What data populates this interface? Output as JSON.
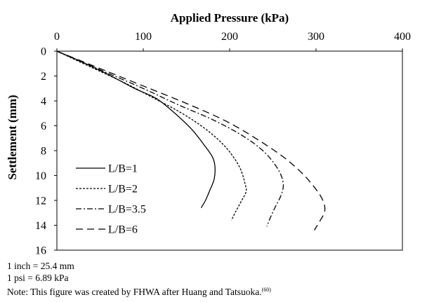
{
  "chart_data": {
    "type": "line",
    "title": "Applied Pressure (kPa)",
    "xlabel": "Applied Pressure (kPa)",
    "ylabel": "Settlement (mm)",
    "xlim": [
      0,
      400
    ],
    "ylim": [
      0,
      16
    ],
    "x_ticks": [
      "0",
      "100",
      "200",
      "300",
      "400"
    ],
    "y_ticks": [
      "0",
      "2",
      "4",
      "6",
      "8",
      "10",
      "12",
      "14",
      "16"
    ],
    "x_axis_position": "top",
    "y_axis_inverted": true,
    "grid": false,
    "legend_position": "lower-left",
    "series": [
      {
        "name": "L/B=1",
        "dash": "solid",
        "points": [
          [
            0,
            0
          ],
          [
            30,
            0.9
          ],
          [
            60,
            1.9
          ],
          [
            90,
            3.0
          ],
          [
            115,
            3.8
          ],
          [
            135,
            4.9
          ],
          [
            155,
            6.2
          ],
          [
            170,
            7.5
          ],
          [
            180,
            8.5
          ],
          [
            183,
            9.3
          ],
          [
            182,
            10.3
          ],
          [
            177,
            11.2
          ],
          [
            172,
            12.0
          ],
          [
            167,
            12.6
          ]
        ]
      },
      {
        "name": "L/B=2",
        "dash": "short-dash",
        "points": [
          [
            0,
            0
          ],
          [
            40,
            1.3
          ],
          [
            80,
            2.6
          ],
          [
            110,
            3.7
          ],
          [
            140,
            4.8
          ],
          [
            165,
            5.9
          ],
          [
            185,
            7.0
          ],
          [
            200,
            8.1
          ],
          [
            212,
            9.4
          ],
          [
            218,
            10.7
          ],
          [
            219,
            11.3
          ],
          [
            214,
            12.0
          ],
          [
            207,
            12.9
          ],
          [
            202,
            13.6
          ]
        ]
      },
      {
        "name": "L/B=3.5",
        "dash": "dash-dot",
        "points": [
          [
            0,
            0
          ],
          [
            50,
            1.5
          ],
          [
            100,
            3.0
          ],
          [
            140,
            4.3
          ],
          [
            180,
            5.5
          ],
          [
            215,
            6.8
          ],
          [
            240,
            8.1
          ],
          [
            256,
            9.5
          ],
          [
            262,
            10.6
          ],
          [
            260,
            11.5
          ],
          [
            253,
            12.5
          ],
          [
            247,
            13.4
          ],
          [
            243,
            14.1
          ]
        ]
      },
      {
        "name": "L/B=6",
        "dash": "long-dash",
        "points": [
          [
            0,
            0
          ],
          [
            50,
            1.4
          ],
          [
            100,
            2.8
          ],
          [
            150,
            4.2
          ],
          [
            195,
            5.6
          ],
          [
            230,
            7.0
          ],
          [
            262,
            8.5
          ],
          [
            285,
            9.9
          ],
          [
            302,
            11.3
          ],
          [
            309,
            12.2
          ],
          [
            310,
            12.9
          ],
          [
            305,
            13.6
          ],
          [
            298,
            14.4
          ]
        ]
      }
    ]
  },
  "notes": {
    "line1": "1 inch = 25.4 mm",
    "line2": "1 psi = 6.89 kPa",
    "line3": "Note: This figure was created by FHWA after Huang and Tatsuoka.",
    "line3_ref": "(60)"
  }
}
